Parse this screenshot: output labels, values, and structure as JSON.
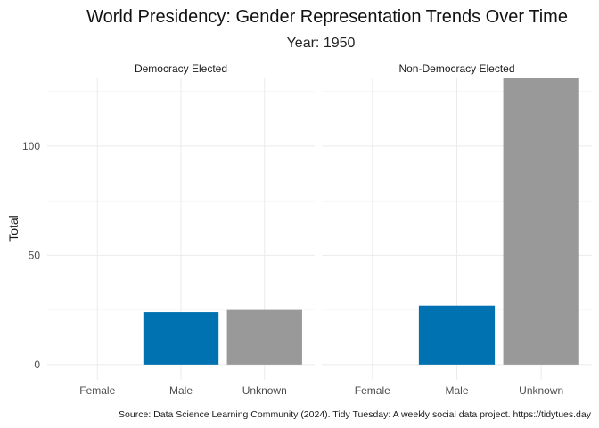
{
  "chart_data": {
    "type": "bar",
    "title": "World Presidency: Gender Representation Trends Over Time",
    "subtitle": "Year: 1950",
    "ylabel": "Total",
    "xlabel": "",
    "caption": "Source: Data Science Learning Community (2024). Tidy Tuesday: A weekly social data project. https://tidytues.day",
    "ylim": [
      -7,
      131
    ],
    "yticks": [
      0,
      50,
      100
    ],
    "grid": true,
    "legend": "none",
    "categories": [
      "Female",
      "Male",
      "Unknown"
    ],
    "colors": {
      "Female": "#E76BA8",
      "Male": "#0072B2",
      "Unknown": "#999999"
    },
    "panels": [
      {
        "name": "Democracy Elected",
        "values": [
          0,
          24,
          25
        ]
      },
      {
        "name": "Non-Democracy Elected",
        "values": [
          0,
          27,
          131
        ]
      }
    ]
  }
}
